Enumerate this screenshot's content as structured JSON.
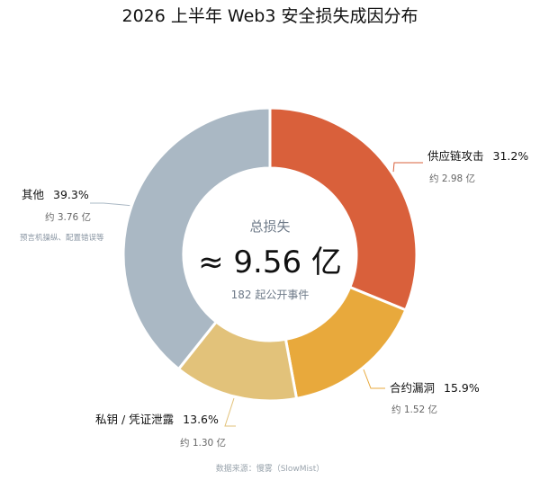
{
  "chart_data": {
    "type": "pie",
    "variant": "donut",
    "title": "2026 上半年 Web3 安全损失成因分布",
    "center": {
      "label": "总损失",
      "total": "≈ 9.56 亿",
      "sub": "182 起公开事件"
    },
    "slices": [
      {
        "name": "供应链攻击",
        "pct": 31.2,
        "pct_text": "31.2%",
        "amount_text": "约 2.98 亿",
        "note": "",
        "color": "#d9603b"
      },
      {
        "name": "合约漏洞",
        "pct": 15.9,
        "pct_text": "15.9%",
        "amount_text": "约 1.52 亿",
        "note": "",
        "color": "#e8a93c"
      },
      {
        "name": "私钥 / 凭证泄露",
        "pct": 13.6,
        "pct_text": "13.6%",
        "amount_text": "约 1.30 亿",
        "note": "",
        "color": "#e2c27a"
      },
      {
        "name": "其他",
        "pct": 39.3,
        "pct_text": "39.3%",
        "amount_text": "约 3.76 亿",
        "note": "预言机操纵、配置错误等",
        "color": "#aab8c4"
      }
    ],
    "source": "数据来源：慢雾（SlowMist）",
    "legend": "none"
  }
}
